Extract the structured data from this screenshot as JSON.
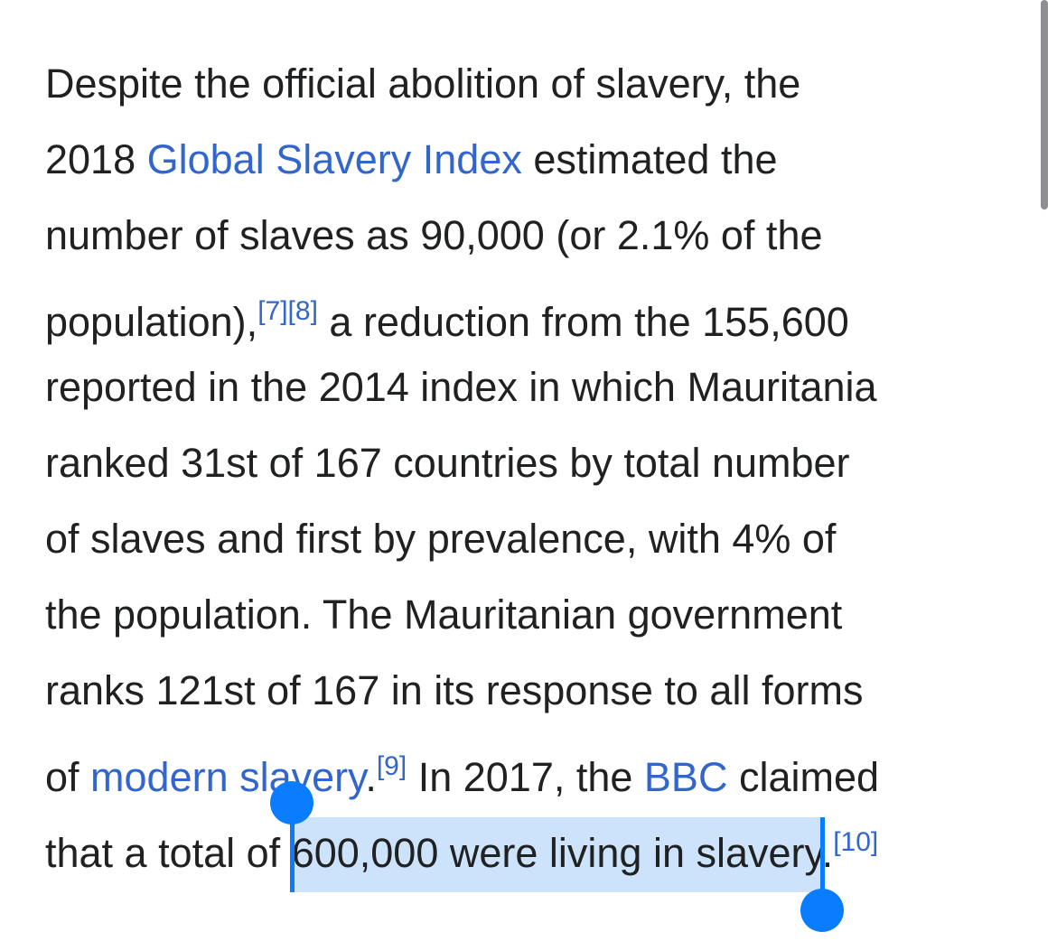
{
  "paragraph": {
    "lines": [
      [
        {
          "text": "Despite the official abolition of slavery, the"
        }
      ],
      [
        {
          "text": "2018 "
        },
        {
          "text": "Global Slavery Index",
          "link": true
        },
        {
          "text": " estimated the"
        }
      ],
      [
        {
          "text": "number of slaves as 90,000 (or 2.1% of the"
        }
      ],
      [
        {
          "text": "population),"
        },
        {
          "text": "[7]",
          "ref": true
        },
        {
          "text": "[8]",
          "ref": true
        },
        {
          "text": " a reduction from the 155,600"
        }
      ],
      [
        {
          "text": "reported in the 2014 index in which Mauritania"
        }
      ],
      [
        {
          "text": "ranked 31st of 167 countries by total number"
        }
      ],
      [
        {
          "text": "of slaves and first by prevalence, with 4% of"
        }
      ],
      [
        {
          "text": "the population. The Mauritanian government"
        }
      ],
      [
        {
          "text": "ranks 121st of 167 in its response to all forms"
        }
      ],
      [
        {
          "text": "of "
        },
        {
          "text": "modern slavery",
          "link": true
        },
        {
          "text": "."
        },
        {
          "text": "[9]",
          "ref": true
        },
        {
          "text": " In 2017, the "
        },
        {
          "text": "BBC",
          "link": true
        },
        {
          "text": " claimed"
        }
      ],
      [
        {
          "text": "that a total of "
        },
        {
          "text": "600,000 were living in slavery",
          "selected": true
        },
        {
          "text": "."
        },
        {
          "text": "[10]",
          "ref": true
        }
      ]
    ]
  }
}
